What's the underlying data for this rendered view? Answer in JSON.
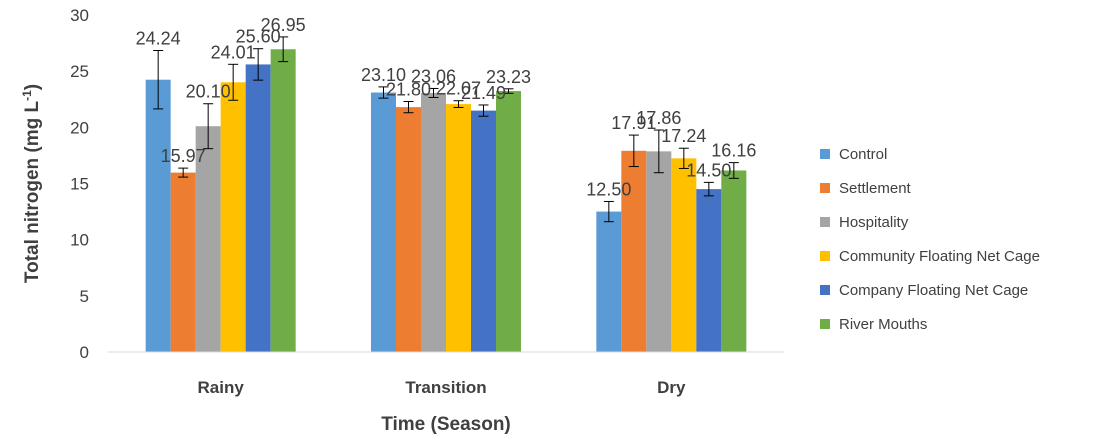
{
  "chart_data": {
    "type": "bar",
    "xlabel": "Time (Season)",
    "ylabel": "Total nitrogen (mg L-1)",
    "ylabel_parts": {
      "main": "Total nitrogen (mg L",
      "sup": "-1",
      "close": ")"
    },
    "ylim": [
      0,
      30
    ],
    "yticks": [
      0,
      5,
      10,
      15,
      20,
      25,
      30
    ],
    "grid": false,
    "legend_position": "right",
    "categories": [
      "Rainy",
      "Transition",
      "Dry"
    ],
    "series": [
      {
        "name": "Control",
        "color": "#5B9BD5",
        "values": [
          24.24,
          23.1,
          12.5
        ],
        "labels": [
          "24.24",
          "23.10",
          "12.50"
        ],
        "errors": [
          2.6,
          0.5,
          0.9
        ]
      },
      {
        "name": "Settlement",
        "color": "#ED7D31",
        "values": [
          15.97,
          21.8,
          17.91
        ],
        "labels": [
          "15.97",
          "21.80",
          "17.91"
        ],
        "errors": [
          0.4,
          0.5,
          1.4
        ]
      },
      {
        "name": "Hospitality",
        "color": "#A5A5A5",
        "values": [
          20.1,
          23.06,
          17.86
        ],
        "labels": [
          "20.10",
          "23.06",
          "17.86"
        ],
        "errors": [
          2.0,
          0.4,
          1.9
        ]
      },
      {
        "name": "Community Floating Net Cage",
        "color": "#FFC000",
        "values": [
          24.01,
          22.07,
          17.24
        ],
        "labels": [
          "24.01",
          "22.07",
          "17.24"
        ],
        "errors": [
          1.6,
          0.3,
          0.9
        ]
      },
      {
        "name": "Company Floating Net Cage",
        "color": "#4472C4",
        "values": [
          25.6,
          21.49,
          14.5
        ],
        "labels": [
          "25.60",
          "21.49",
          "14.50"
        ],
        "errors": [
          1.4,
          0.5,
          0.6
        ]
      },
      {
        "name": "River Mouths",
        "color": "#70AD47",
        "values": [
          26.95,
          23.23,
          16.16
        ],
        "labels": [
          "26.95",
          "23.23",
          "16.16"
        ],
        "errors": [
          1.1,
          0.2,
          0.7
        ]
      }
    ]
  }
}
